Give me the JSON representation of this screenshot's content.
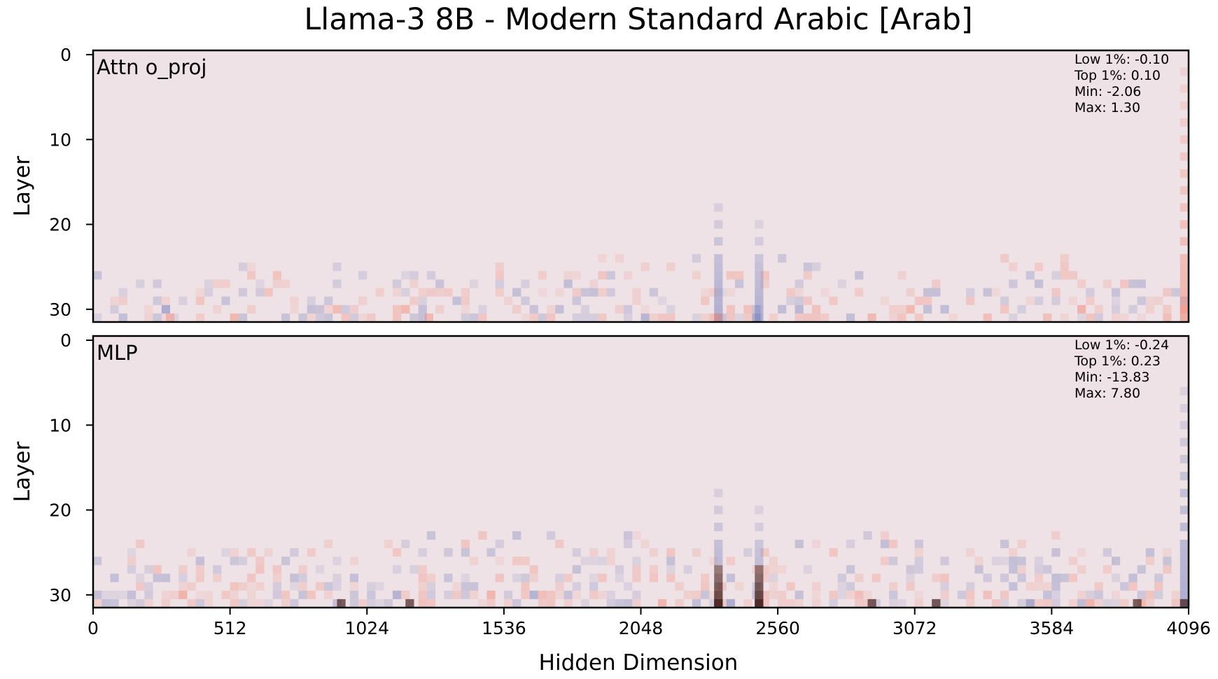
{
  "chart_data": {
    "type": "heatmap",
    "title": "Llama-3 8B - Modern Standard Arabic [Arab]",
    "xlabel": "Hidden Dimension",
    "xlim": [
      0,
      4096
    ],
    "x_ticks": [
      "0",
      "512",
      "1024",
      "1536",
      "2048",
      "2560",
      "3072",
      "3584",
      "4096"
    ],
    "colormap": "diverging blue-white-red (blue = negative, red = positive)",
    "colors": {
      "negative": "#6f79b8",
      "neutral": "#efe2e6",
      "positive": "#f28a78",
      "extreme": "#4a2420"
    },
    "panels": [
      {
        "label": "Attn o_proj",
        "ylabel": "Layer",
        "ylim": [
          0,
          32
        ],
        "y_ticks": [
          "0",
          "10",
          "20",
          "30"
        ],
        "stats": [
          "Low 1%: -0.10",
          "Top 1%: 0.10",
          "Min: -2.06",
          "Max: 1.30"
        ],
        "notable_dimensions": [
          {
            "dim": 2338,
            "layers": [
              17,
              31
            ],
            "sign": "negative"
          },
          {
            "dim": 2490,
            "layers": [
              20,
              31
            ],
            "sign": "negative"
          },
          {
            "dim": 4080,
            "layers": [
              1,
              31
            ],
            "sign": "positive"
          }
        ]
      },
      {
        "label": "MLP",
        "ylabel": "Layer",
        "ylim": [
          0,
          32
        ],
        "y_ticks": [
          "0",
          "10",
          "20",
          "30"
        ],
        "stats": [
          "Low 1%: -0.24",
          "Top 1%: 0.23",
          "Min: -13.83",
          "Max: 7.80"
        ],
        "notable_dimensions": [
          {
            "dim": 2338,
            "layers": [
              17,
              31
            ],
            "sign": "mixed"
          },
          {
            "dim": 2490,
            "layers": [
              20,
              31
            ],
            "sign": "mixed"
          },
          {
            "dim": 4080,
            "layers": [
              6,
              31
            ],
            "sign": "negative"
          }
        ]
      }
    ]
  }
}
